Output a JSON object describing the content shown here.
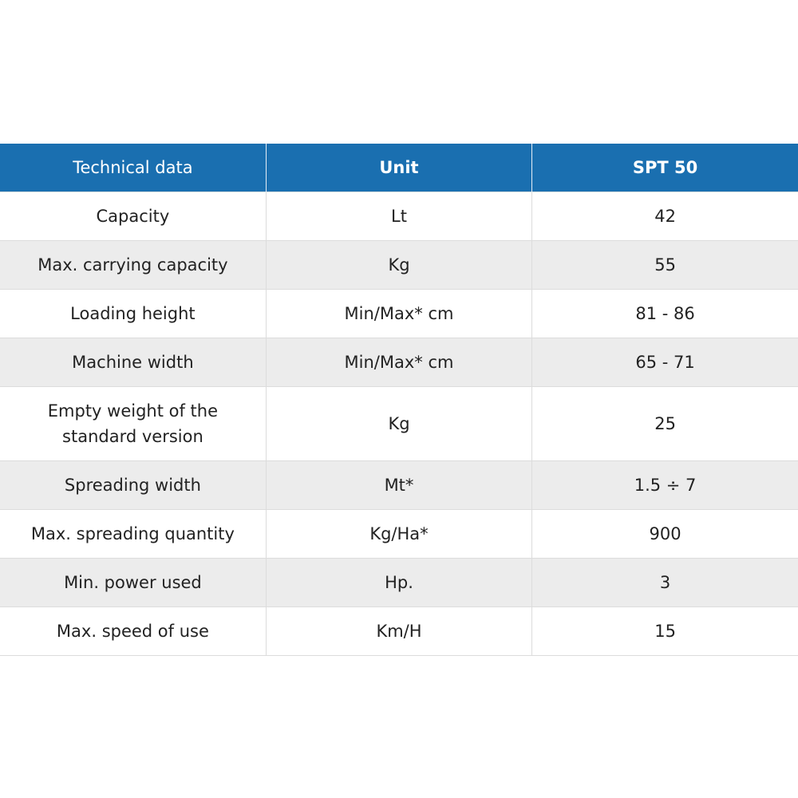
{
  "table": {
    "header": [
      "Technical data",
      "Unit",
      "SPT 50"
    ],
    "rows": [
      [
        "Capacity",
        "Lt",
        "42"
      ],
      [
        "Max. carrying capacity",
        "Kg",
        "55"
      ],
      [
        "Loading height",
        "Min/Max* cm",
        "81 - 86"
      ],
      [
        "Machine width",
        "Min/Max* cm",
        "65 - 71"
      ],
      [
        "Empty weight of the standard version",
        "Kg",
        "25"
      ],
      [
        "Spreading width",
        "Mt*",
        "1.5 ÷ 7"
      ],
      [
        "Max. spreading quantity",
        "Kg/Ha*",
        "900"
      ],
      [
        "Min. power used",
        "Hp.",
        "3"
      ],
      [
        "Max. speed of use",
        "Km/H",
        "15"
      ]
    ]
  }
}
